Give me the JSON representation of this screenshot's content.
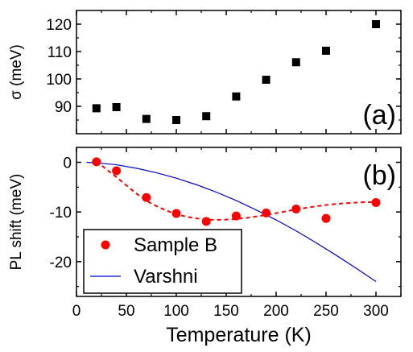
{
  "chart_data": [
    {
      "type": "scatter",
      "panel_label": "(a)",
      "xlabel": "",
      "ylabel": "σ (meV)",
      "xlim": [
        0,
        325
      ],
      "ylim": [
        80,
        125
      ],
      "yticks": [
        90,
        100,
        110,
        120
      ],
      "y_tick_labels": [
        "90",
        "100",
        "110",
        "120"
      ],
      "series": [
        {
          "marker": "square",
          "color": "#000000",
          "x": [
            20,
            40,
            70,
            100,
            130,
            160,
            190,
            220,
            250,
            300
          ],
          "y": [
            89.3,
            89.7,
            85.4,
            85.0,
            86.4,
            93.6,
            99.7,
            106.1,
            110.3,
            120.0
          ]
        }
      ]
    },
    {
      "type": "scatter",
      "panel_label": "(b)",
      "xlabel": "Temperature (K)",
      "ylabel": "PL shift (meV)",
      "xlim": [
        0,
        325
      ],
      "ylim": [
        -27,
        3
      ],
      "yticks": [
        0,
        -10,
        -20
      ],
      "y_tick_labels": [
        "0",
        "-10",
        "-20"
      ],
      "xticks": [
        0,
        50,
        100,
        150,
        200,
        250,
        300
      ],
      "x_tick_labels": [
        "0",
        "50",
        "100",
        "150",
        "200",
        "250",
        "300"
      ],
      "legend_position": "bottom-left",
      "series": [
        {
          "name": "Sample B",
          "marker": "circle",
          "color": "#ff0000",
          "x": [
            20,
            40,
            70,
            100,
            130,
            160,
            190,
            220,
            250,
            300
          ],
          "y": [
            0.1,
            -1.7,
            -7.1,
            -10.3,
            -11.9,
            -10.8,
            -10.2,
            -9.4,
            -11.3,
            -8.1
          ]
        },
        {
          "name": "Varshni",
          "marker": "line",
          "color": "#0000cc",
          "x": [
            10,
            20,
            40,
            60,
            80,
            100,
            120,
            140,
            160,
            180,
            200,
            220,
            240,
            260,
            280,
            300
          ],
          "y": [
            0,
            -0.1,
            -0.5,
            -1.2,
            -2.1,
            -3.2,
            -4.5,
            -6.0,
            -7.7,
            -9.6,
            -11.6,
            -13.8,
            -16.2,
            -18.7,
            -21.3,
            -24.0
          ]
        },
        {
          "name": "",
          "marker": "dashed-fit",
          "color": "#ff0000",
          "x": [
            20,
            40,
            70,
            100,
            130,
            160,
            190,
            220,
            250,
            280,
            300
          ],
          "y": [
            0.2,
            -3.0,
            -7.7,
            -10.4,
            -11.5,
            -11.4,
            -10.6,
            -9.5,
            -8.6,
            -8.1,
            -8.0
          ]
        }
      ]
    }
  ]
}
